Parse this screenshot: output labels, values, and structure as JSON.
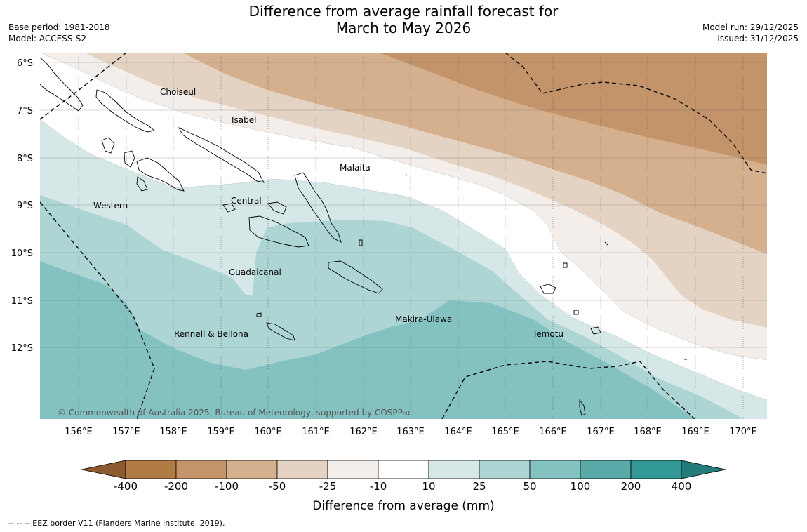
{
  "title": {
    "line1": "Difference from average rainfall forecast for",
    "line2": "March to May 2026"
  },
  "meta_left": {
    "base_period": "Base period: 1981-2018",
    "model": "Model: ACCESS-S2"
  },
  "meta_right": {
    "model_run": "Model run: 29/12/2025",
    "issued": "Issued: 31/12/2025"
  },
  "map": {
    "lat_labels": [
      "6°S",
      "7°S",
      "8°S",
      "9°S",
      "10°S",
      "11°S",
      "12°S"
    ],
    "lon_labels": [
      "156°E",
      "157°E",
      "158°E",
      "159°E",
      "160°E",
      "161°E",
      "162°E",
      "163°E",
      "164°E",
      "165°E",
      "166°E",
      "167°E",
      "168°E",
      "169°E",
      "170°E"
    ],
    "region_labels": [
      {
        "text": "Choiseul"
      },
      {
        "text": "Isabel"
      },
      {
        "text": "Malaita"
      },
      {
        "text": "Western"
      },
      {
        "text": "Central"
      },
      {
        "text": "Guadalcanal"
      },
      {
        "text": "Makira-Ulawa"
      },
      {
        "text": "Rennell & Bellona"
      },
      {
        "text": "Temotu"
      }
    ],
    "copyright": "© Commonwealth of Australia 2025, Bureau of Meteorology, supported by COSPPac"
  },
  "legend": {
    "tick_labels": [
      "-400",
      "-200",
      "-100",
      "-50",
      "-25",
      "-10",
      "10",
      "25",
      "50",
      "100",
      "200",
      "400"
    ],
    "colors": [
      "#8c5a2e",
      "#b07b45",
      "#c3946a",
      "#d4b08f",
      "#e4d3c2",
      "#f4eeea",
      "#ffffff",
      "#d5e8e7",
      "#acd5d4",
      "#84c2c1",
      "#5aaaa9",
      "#329997",
      "#237c7a"
    ],
    "title": "Difference from average (mm)"
  },
  "footer": {
    "eez_note": "--  --  -- EEZ border V11 (Flanders Marine Institute, 2019)."
  }
}
